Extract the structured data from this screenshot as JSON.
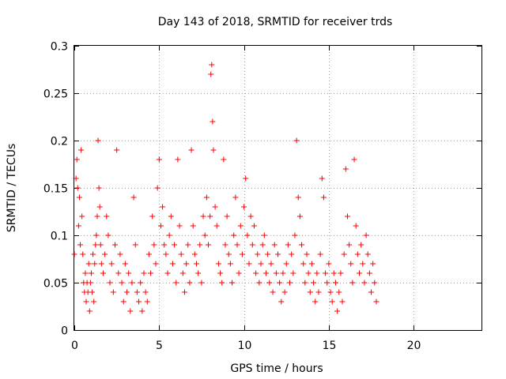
{
  "chart_data": {
    "type": "scatter",
    "title": "Day 143 of 2018, SRMTID for receiver trds",
    "xlabel": "GPS time / hours",
    "ylabel": "SRMTID / TECUs",
    "xlim": [
      0,
      24
    ],
    "ylim": [
      0,
      0.3
    ],
    "xticks": [
      0,
      5,
      10,
      15,
      20
    ],
    "xtick_labels": [
      "0",
      "5",
      "10",
      "15",
      "20"
    ],
    "yticks": [
      0,
      0.05,
      0.1,
      0.15,
      0.2,
      0.25,
      0.3
    ],
    "ytick_labels": [
      "0",
      "0.05",
      "0.1",
      "0.15",
      "0.2",
      "0.25",
      "0.3"
    ],
    "grid": true,
    "marker": "plus",
    "color": "#ff0000",
    "series": [
      {
        "name": "SRMTID",
        "x": [
          0.0,
          0.1,
          0.15,
          0.2,
          0.25,
          0.3,
          0.35,
          0.4,
          0.45,
          0.5,
          0.55,
          0.6,
          0.65,
          0.7,
          0.75,
          0.8,
          0.85,
          0.9,
          0.95,
          1.0,
          1.05,
          1.1,
          1.15,
          1.2,
          1.25,
          1.3,
          1.35,
          1.4,
          1.45,
          1.5,
          1.55,
          1.6,
          1.7,
          1.8,
          1.9,
          2.0,
          2.1,
          2.2,
          2.3,
          2.4,
          2.5,
          2.6,
          2.7,
          2.8,
          2.9,
          3.0,
          3.1,
          3.2,
          3.3,
          3.4,
          3.5,
          3.6,
          3.7,
          3.8,
          3.9,
          4.0,
          4.1,
          4.2,
          4.3,
          4.4,
          4.5,
          4.6,
          4.7,
          4.8,
          4.9,
          5.0,
          5.1,
          5.2,
          5.3,
          5.4,
          5.5,
          5.6,
          5.7,
          5.8,
          5.9,
          6.0,
          6.1,
          6.2,
          6.3,
          6.4,
          6.5,
          6.6,
          6.7,
          6.8,
          6.9,
          7.0,
          7.1,
          7.2,
          7.3,
          7.4,
          7.5,
          7.6,
          7.7,
          7.8,
          7.9,
          8.0,
          8.05,
          8.1,
          8.15,
          8.2,
          8.3,
          8.4,
          8.5,
          8.6,
          8.7,
          8.8,
          8.9,
          9.0,
          9.1,
          9.2,
          9.3,
          9.4,
          9.5,
          9.6,
          9.7,
          9.8,
          9.9,
          10.0,
          10.1,
          10.2,
          10.3,
          10.4,
          10.5,
          10.6,
          10.7,
          10.8,
          10.9,
          11.0,
          11.1,
          11.2,
          11.3,
          11.4,
          11.5,
          11.6,
          11.7,
          11.8,
          11.9,
          12.0,
          12.1,
          12.2,
          12.3,
          12.4,
          12.5,
          12.6,
          12.7,
          12.8,
          12.9,
          13.0,
          13.1,
          13.2,
          13.3,
          13.4,
          13.5,
          13.6,
          13.7,
          13.8,
          13.9,
          14.0,
          14.1,
          14.2,
          14.3,
          14.4,
          14.5,
          14.6,
          14.7,
          14.8,
          14.9,
          15.0,
          15.1,
          15.2,
          15.3,
          15.4,
          15.5,
          15.6,
          15.7,
          15.8,
          15.9,
          16.0,
          16.1,
          16.2,
          16.3,
          16.4,
          16.5,
          16.6,
          16.7,
          16.8,
          16.9,
          17.0,
          17.1,
          17.2,
          17.3,
          17.4,
          17.5,
          17.6,
          17.7,
          17.8
        ],
        "y": [
          0.08,
          0.16,
          0.18,
          0.15,
          0.11,
          0.14,
          0.09,
          0.19,
          0.12,
          0.08,
          0.05,
          0.04,
          0.06,
          0.03,
          0.05,
          0.04,
          0.07,
          0.02,
          0.05,
          0.06,
          0.04,
          0.08,
          0.03,
          0.07,
          0.09,
          0.1,
          0.12,
          0.2,
          0.15,
          0.13,
          0.09,
          0.07,
          0.06,
          0.08,
          0.12,
          0.1,
          0.05,
          0.07,
          0.04,
          0.09,
          0.19,
          0.06,
          0.08,
          0.05,
          0.03,
          0.07,
          0.04,
          0.06,
          0.02,
          0.05,
          0.14,
          0.09,
          0.04,
          0.03,
          0.05,
          0.02,
          0.06,
          0.04,
          0.03,
          0.08,
          0.06,
          0.12,
          0.09,
          0.07,
          0.15,
          0.18,
          0.11,
          0.13,
          0.09,
          0.08,
          0.06,
          0.1,
          0.12,
          0.07,
          0.09,
          0.05,
          0.18,
          0.11,
          0.08,
          0.06,
          0.04,
          0.07,
          0.09,
          0.05,
          0.19,
          0.11,
          0.08,
          0.07,
          0.06,
          0.09,
          0.05,
          0.12,
          0.1,
          0.14,
          0.09,
          0.12,
          0.27,
          0.28,
          0.22,
          0.19,
          0.13,
          0.11,
          0.07,
          0.06,
          0.05,
          0.18,
          0.09,
          0.12,
          0.08,
          0.07,
          0.05,
          0.1,
          0.14,
          0.09,
          0.06,
          0.11,
          0.08,
          0.13,
          0.16,
          0.1,
          0.07,
          0.12,
          0.09,
          0.11,
          0.06,
          0.08,
          0.05,
          0.07,
          0.09,
          0.1,
          0.06,
          0.08,
          0.05,
          0.07,
          0.04,
          0.09,
          0.06,
          0.08,
          0.05,
          0.03,
          0.06,
          0.04,
          0.07,
          0.09,
          0.05,
          0.08,
          0.06,
          0.1,
          0.2,
          0.14,
          0.12,
          0.09,
          0.07,
          0.05,
          0.08,
          0.06,
          0.04,
          0.07,
          0.05,
          0.03,
          0.06,
          0.04,
          0.08,
          0.16,
          0.14,
          0.06,
          0.05,
          0.07,
          0.04,
          0.03,
          0.06,
          0.05,
          0.02,
          0.04,
          0.06,
          0.03,
          0.08,
          0.17,
          0.12,
          0.09,
          0.07,
          0.05,
          0.18,
          0.11,
          0.08,
          0.06,
          0.09,
          0.07,
          0.05,
          0.1,
          0.08,
          0.06,
          0.04,
          0.07,
          0.05,
          0.03
        ]
      }
    ]
  }
}
